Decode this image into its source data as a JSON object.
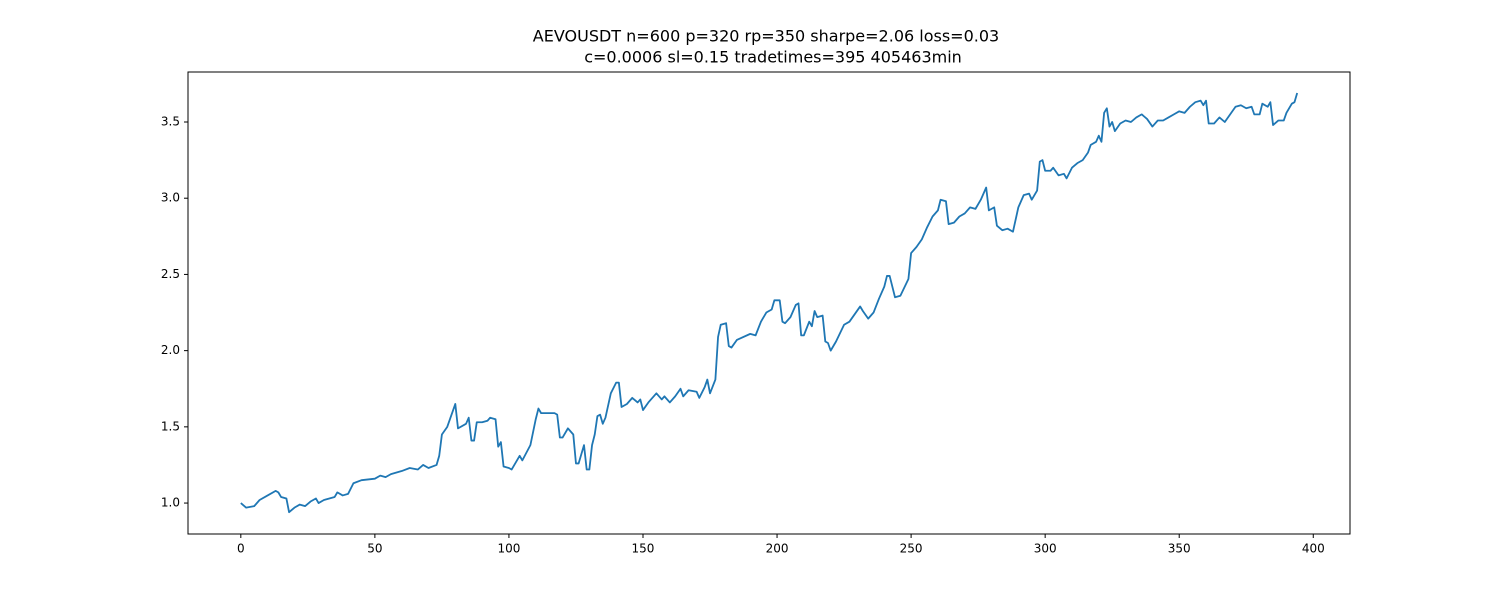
{
  "chart_data": {
    "type": "line",
    "title_lines": [
      "AEVOUSDT n=600 p=320 rp=350 sharpe=2.06 loss=0.03",
      "c=0.0006 sl=0.15 tradetimes=395  405463min"
    ],
    "xlim": [
      -19.7,
      413.7
    ],
    "ylim": [
      0.797,
      3.828
    ],
    "xticks": [
      0,
      50,
      100,
      150,
      200,
      250,
      300,
      350,
      400
    ],
    "yticks": [
      {
        "value": 1,
        "label": "1.0"
      },
      1.5,
      {
        "value": 2,
        "label": "2.0"
      },
      2.5,
      {
        "value": 3,
        "label": "3.0"
      },
      3.5
    ],
    "grid": false,
    "series": [
      {
        "color": "#1f77b4",
        "x": [
          0,
          2,
          5,
          7,
          10,
          13,
          14,
          15,
          17,
          18,
          20,
          22,
          24,
          26,
          28,
          29,
          31,
          35,
          36,
          38,
          40,
          42,
          45,
          50,
          52,
          54,
          56,
          60,
          63,
          66,
          68,
          70,
          73,
          74,
          75,
          77,
          79,
          80,
          81,
          84,
          85,
          86,
          87,
          88,
          90,
          92,
          93,
          95,
          96,
          97,
          98,
          100,
          101,
          104,
          105,
          108,
          110,
          111,
          112,
          117,
          118,
          119,
          120,
          122,
          124,
          125,
          126,
          128,
          129,
          130,
          131,
          132,
          133,
          134,
          135,
          136,
          138,
          140,
          141,
          142,
          144,
          146,
          148,
          149,
          150,
          152,
          155,
          157,
          158,
          160,
          162,
          164,
          165,
          167,
          170,
          171,
          173,
          174,
          175,
          177,
          178,
          179,
          181,
          182,
          183,
          185,
          190,
          192,
          194,
          196,
          198,
          199,
          201,
          202,
          203,
          205,
          207,
          208,
          209,
          210,
          212,
          213,
          214,
          215,
          217,
          218,
          219,
          220,
          222,
          225,
          227,
          229,
          231,
          232,
          234,
          236,
          238,
          240,
          241,
          242,
          244,
          246,
          249,
          250,
          252,
          254,
          256,
          258,
          260,
          261,
          263,
          264,
          266,
          268,
          270,
          272,
          274,
          276,
          278,
          279,
          281,
          282,
          284,
          286,
          288,
          290,
          292,
          294,
          295,
          297,
          298,
          299,
          300,
          302,
          303,
          305,
          307,
          308,
          310,
          312,
          314,
          316,
          317,
          319,
          320,
          321,
          322,
          323,
          324,
          325,
          326,
          328,
          330,
          332,
          334,
          336,
          338,
          340,
          342,
          344,
          346,
          348,
          350,
          352,
          354,
          356,
          358,
          359,
          360,
          361,
          363,
          365,
          367,
          369,
          371,
          373,
          375,
          377,
          378,
          380,
          381,
          383,
          384,
          385,
          387,
          389,
          390,
          392,
          393,
          394
        ],
        "values": [
          1.0,
          0.97,
          0.98,
          1.02,
          1.05,
          1.08,
          1.07,
          1.04,
          1.03,
          0.94,
          0.97,
          0.99,
          0.98,
          1.01,
          1.03,
          1.0,
          1.02,
          1.04,
          1.07,
          1.05,
          1.06,
          1.13,
          1.15,
          1.16,
          1.18,
          1.17,
          1.19,
          1.21,
          1.23,
          1.22,
          1.25,
          1.23,
          1.25,
          1.31,
          1.45,
          1.5,
          1.6,
          1.65,
          1.49,
          1.52,
          1.56,
          1.41,
          1.41,
          1.53,
          1.53,
          1.54,
          1.56,
          1.55,
          1.37,
          1.4,
          1.24,
          1.23,
          1.22,
          1.31,
          1.28,
          1.38,
          1.55,
          1.62,
          1.59,
          1.59,
          1.58,
          1.43,
          1.43,
          1.49,
          1.45,
          1.26,
          1.26,
          1.38,
          1.22,
          1.22,
          1.38,
          1.45,
          1.57,
          1.58,
          1.52,
          1.56,
          1.72,
          1.79,
          1.79,
          1.63,
          1.65,
          1.69,
          1.66,
          1.68,
          1.61,
          1.66,
          1.72,
          1.68,
          1.7,
          1.66,
          1.7,
          1.75,
          1.7,
          1.74,
          1.73,
          1.69,
          1.76,
          1.81,
          1.72,
          1.81,
          2.09,
          2.17,
          2.18,
          2.03,
          2.02,
          2.07,
          2.11,
          2.1,
          2.19,
          2.25,
          2.27,
          2.33,
          2.33,
          2.19,
          2.18,
          2.22,
          2.3,
          2.31,
          2.1,
          2.1,
          2.19,
          2.16,
          2.26,
          2.22,
          2.23,
          2.06,
          2.05,
          2.0,
          2.06,
          2.17,
          2.19,
          2.24,
          2.29,
          2.26,
          2.21,
          2.25,
          2.34,
          2.42,
          2.49,
          2.49,
          2.35,
          2.36,
          2.47,
          2.64,
          2.68,
          2.73,
          2.81,
          2.88,
          2.92,
          2.99,
          2.98,
          2.83,
          2.84,
          2.88,
          2.9,
          2.94,
          2.93,
          2.99,
          3.07,
          2.92,
          2.94,
          2.82,
          2.79,
          2.8,
          2.78,
          2.94,
          3.02,
          3.03,
          2.99,
          3.05,
          3.24,
          3.25,
          3.18,
          3.18,
          3.2,
          3.15,
          3.16,
          3.13,
          3.2,
          3.23,
          3.25,
          3.3,
          3.35,
          3.37,
          3.41,
          3.37,
          3.56,
          3.59,
          3.47,
          3.5,
          3.44,
          3.49,
          3.51,
          3.5,
          3.53,
          3.55,
          3.52,
          3.47,
          3.51,
          3.51,
          3.53,
          3.55,
          3.57,
          3.56,
          3.6,
          3.63,
          3.64,
          3.61,
          3.64,
          3.49,
          3.49,
          3.53,
          3.5,
          3.55,
          3.6,
          3.61,
          3.59,
          3.6,
          3.55,
          3.55,
          3.62,
          3.6,
          3.63,
          3.48,
          3.51,
          3.51,
          3.56,
          3.62,
          3.63,
          3.69
        ]
      }
    ]
  }
}
